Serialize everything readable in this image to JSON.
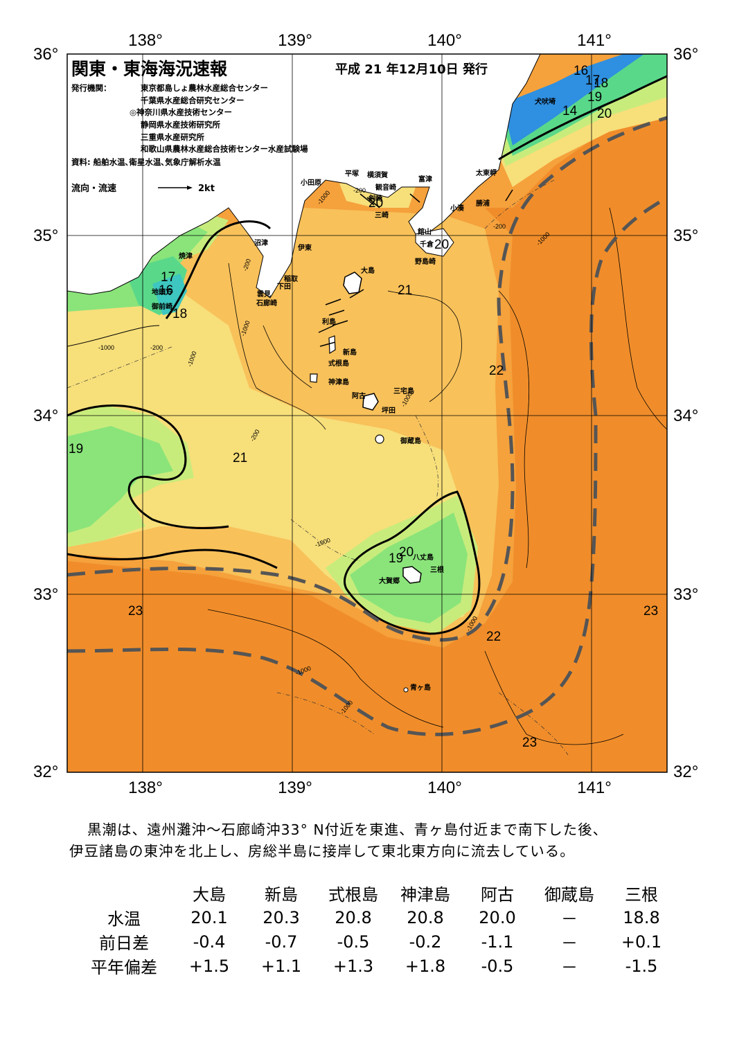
{
  "header": {
    "title": "関東・東海海況速報",
    "issue_date": "平成 21 年12月10日 発行",
    "issuer_label": "発行機関：",
    "issuers": [
      "東京都島しょ農林水産総合センター",
      "千葉県水産総合研究センター",
      "◎神奈川県水産技術センター",
      "静岡県水産技術研究所",
      "三重県水産研究所",
      "和歌山県農林水産総合技術センター水産試験場"
    ],
    "sources": "資料: 船舶水温､衛星水温､気象庁解析水温",
    "current_legend_label": "流向・流速",
    "current_legend_unit": "2kt"
  },
  "axes": {
    "lon_labels": [
      "138°",
      "139°",
      "140°",
      "141°"
    ],
    "lat_labels": [
      "36°",
      "35°",
      "34°",
      "33°",
      "32°"
    ]
  },
  "places": [
    "小田原",
    "平塚",
    "横須賀",
    "観音崎",
    "富津",
    "剣崎",
    "三崎",
    "館山",
    "千倉",
    "野島崎",
    "太東岬",
    "勝浦",
    "小湊",
    "犬吠埼",
    "焼津",
    "沼津",
    "伊東",
    "稲取",
    "下田",
    "雲見",
    "石廊崎",
    "大島",
    "利島",
    "新島",
    "式根島",
    "神津島",
    "三宅島",
    "阿古",
    "坪田",
    "御蔵島",
    "八丈島",
    "三根",
    "大賀郷",
    "青ヶ島",
    "地頭方",
    "御前崎"
  ],
  "isotherm_labels": [
    "14",
    "16",
    "17",
    "18",
    "19",
    "20",
    "21",
    "22",
    "23"
  ],
  "depth_labels": [
    "-200",
    "-1000"
  ],
  "summary": [
    "黒潮は、遠州灘沖～石廊崎沖33° N付近を東進、青ヶ島付近まで南下した後、",
    "伊豆諸島の東沖を北上し、房総半島に接岸して東北東方向に流去している。"
  ],
  "stats": {
    "columns": [
      "大島",
      "新島",
      "式根島",
      "神津島",
      "阿古",
      "御蔵島",
      "三根"
    ],
    "rows": [
      {
        "label": "水温",
        "values": [
          "20.1",
          "20.3",
          "20.8",
          "20.8",
          "20.0",
          "－",
          "18.8"
        ]
      },
      {
        "label": "前日差",
        "values": [
          "-0.4",
          "-0.7",
          "-0.5",
          "-0.2",
          "-1.1",
          "－",
          "+0.1"
        ]
      },
      {
        "label": "平年偏差",
        "values": [
          "+1.5",
          "+1.1",
          "+1.3",
          "+1.8",
          "-0.5",
          "－",
          "-1.5"
        ]
      }
    ]
  },
  "colors": {
    "t23": "#f08d2a",
    "t22": "#f5a13c",
    "t21": "#f8c15a",
    "t20": "#f7df7a",
    "t19": "#c8ec7c",
    "t18": "#8ae47a",
    "t17": "#5ad88a",
    "t16": "#3ec6c0",
    "t14": "#2f8fe0",
    "land": "#ffffff",
    "kuroshio": "#555555"
  }
}
